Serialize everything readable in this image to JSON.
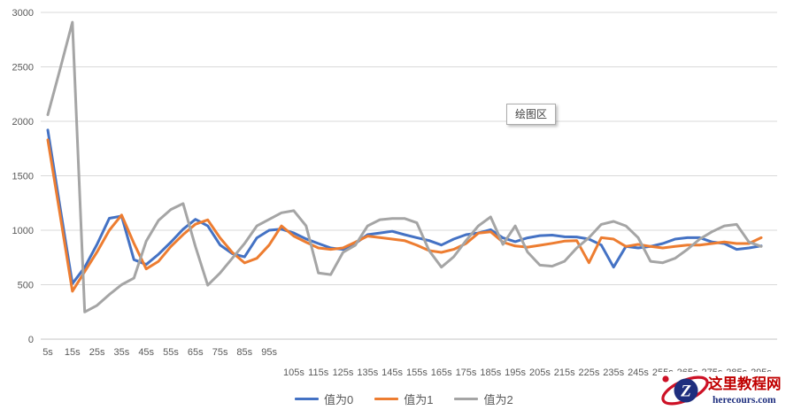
{
  "colors": {
    "background": "#ffffff",
    "gridline": "#d9d9d9",
    "axis_line": "#c6c6c6",
    "tick_text": "#595959",
    "legend_text": "#595959",
    "series_blue": "#4472C4",
    "series_orange": "#ED7D31",
    "series_gray": "#A5A5A5",
    "watermark_red": "#c00000",
    "watermark_navy": "#1e2e7e"
  },
  "plot_area_tooltip": {
    "label": "绘图区"
  },
  "watermark": {
    "site_name": "这里教程网",
    "site_url": "herecours.com",
    "logo_letter": "Z"
  },
  "chart_data": {
    "type": "line",
    "title": "",
    "xlabel": "",
    "ylabel": "",
    "ylim": [
      0,
      3000
    ],
    "y_ticks": [
      0,
      500,
      1000,
      1500,
      2000,
      2500,
      3000
    ],
    "grid": "horizontal",
    "legend_position": "bottom",
    "x_unit": "s",
    "x_values": [
      5,
      10,
      15,
      20,
      25,
      30,
      35,
      40,
      45,
      50,
      55,
      60,
      65,
      70,
      75,
      80,
      85,
      90,
      95,
      100,
      105,
      110,
      115,
      120,
      125,
      130,
      135,
      140,
      145,
      150,
      155,
      160,
      165,
      170,
      175,
      180,
      185,
      190,
      195,
      200,
      205,
      210,
      215,
      220,
      225,
      230,
      235,
      240,
      245,
      250,
      255,
      260,
      265,
      270,
      275,
      280,
      285,
      290,
      295
    ],
    "x_tick_labels_row1": [
      "5s",
      "15s",
      "25s",
      "35s",
      "45s",
      "55s",
      "65s",
      "75s",
      "85s",
      "95s"
    ],
    "x_tick_labels_row2": [
      "105s",
      "115s",
      "125s",
      "135s",
      "145s",
      "155s",
      "165s",
      "175s",
      "185s",
      "195s",
      "205s",
      "215s",
      "225s",
      "235s",
      "245s",
      "255s",
      "265s",
      "275s",
      "285s",
      "295s"
    ],
    "series": [
      {
        "name": "值为0",
        "color": "#4472C4",
        "values": [
          1920,
          1210,
          510,
          660,
          870,
          1110,
          1130,
          730,
          685,
          780,
          890,
          1010,
          1100,
          1040,
          865,
          785,
          755,
          930,
          1000,
          1010,
          975,
          920,
          878,
          837,
          824,
          878,
          959,
          975,
          990,
          959,
          932,
          905,
          864,
          919,
          959,
          975,
          1005,
          930,
          895,
          930,
          950,
          955,
          940,
          938,
          919,
          864,
          661,
          851,
          837,
          851,
          878,
          919,
          932,
          932,
          892,
          878,
          824,
          837,
          856
        ]
      },
      {
        "name": "值为1",
        "color": "#ED7D31",
        "values": [
          1830,
          1140,
          440,
          620,
          800,
          1000,
          1140,
          880,
          645,
          715,
          850,
          960,
          1055,
          1095,
          930,
          797,
          700,
          742,
          864,
          1040,
          946,
          890,
          837,
          824,
          837,
          890,
          946,
          933,
          919,
          905,
          863,
          813,
          797,
          824,
          878,
          973,
          986,
          890,
          855,
          845,
          862,
          880,
          900,
          905,
          702,
          932,
          919,
          851,
          870,
          851,
          837,
          851,
          864,
          864,
          878,
          892,
          878,
          878,
          932
        ]
      },
      {
        "name": "值为2",
        "color": "#A5A5A5",
        "values": [
          2060,
          2480,
          2910,
          250,
          310,
          410,
          500,
          560,
          900,
          1090,
          1190,
          1245,
          850,
          495,
          607,
          742,
          878,
          1040,
          1100,
          1160,
          1180,
          1040,
          607,
          593,
          797,
          863,
          1040,
          1097,
          1108,
          1108,
          1068,
          813,
          661,
          756,
          905,
          1040,
          1122,
          870,
          1040,
          800,
          680,
          670,
          715,
          837,
          932,
          1054,
          1081,
          1040,
          932,
          715,
          702,
          742,
          824,
          919,
          986,
          1040,
          1054,
          892,
          851
        ]
      }
    ]
  }
}
